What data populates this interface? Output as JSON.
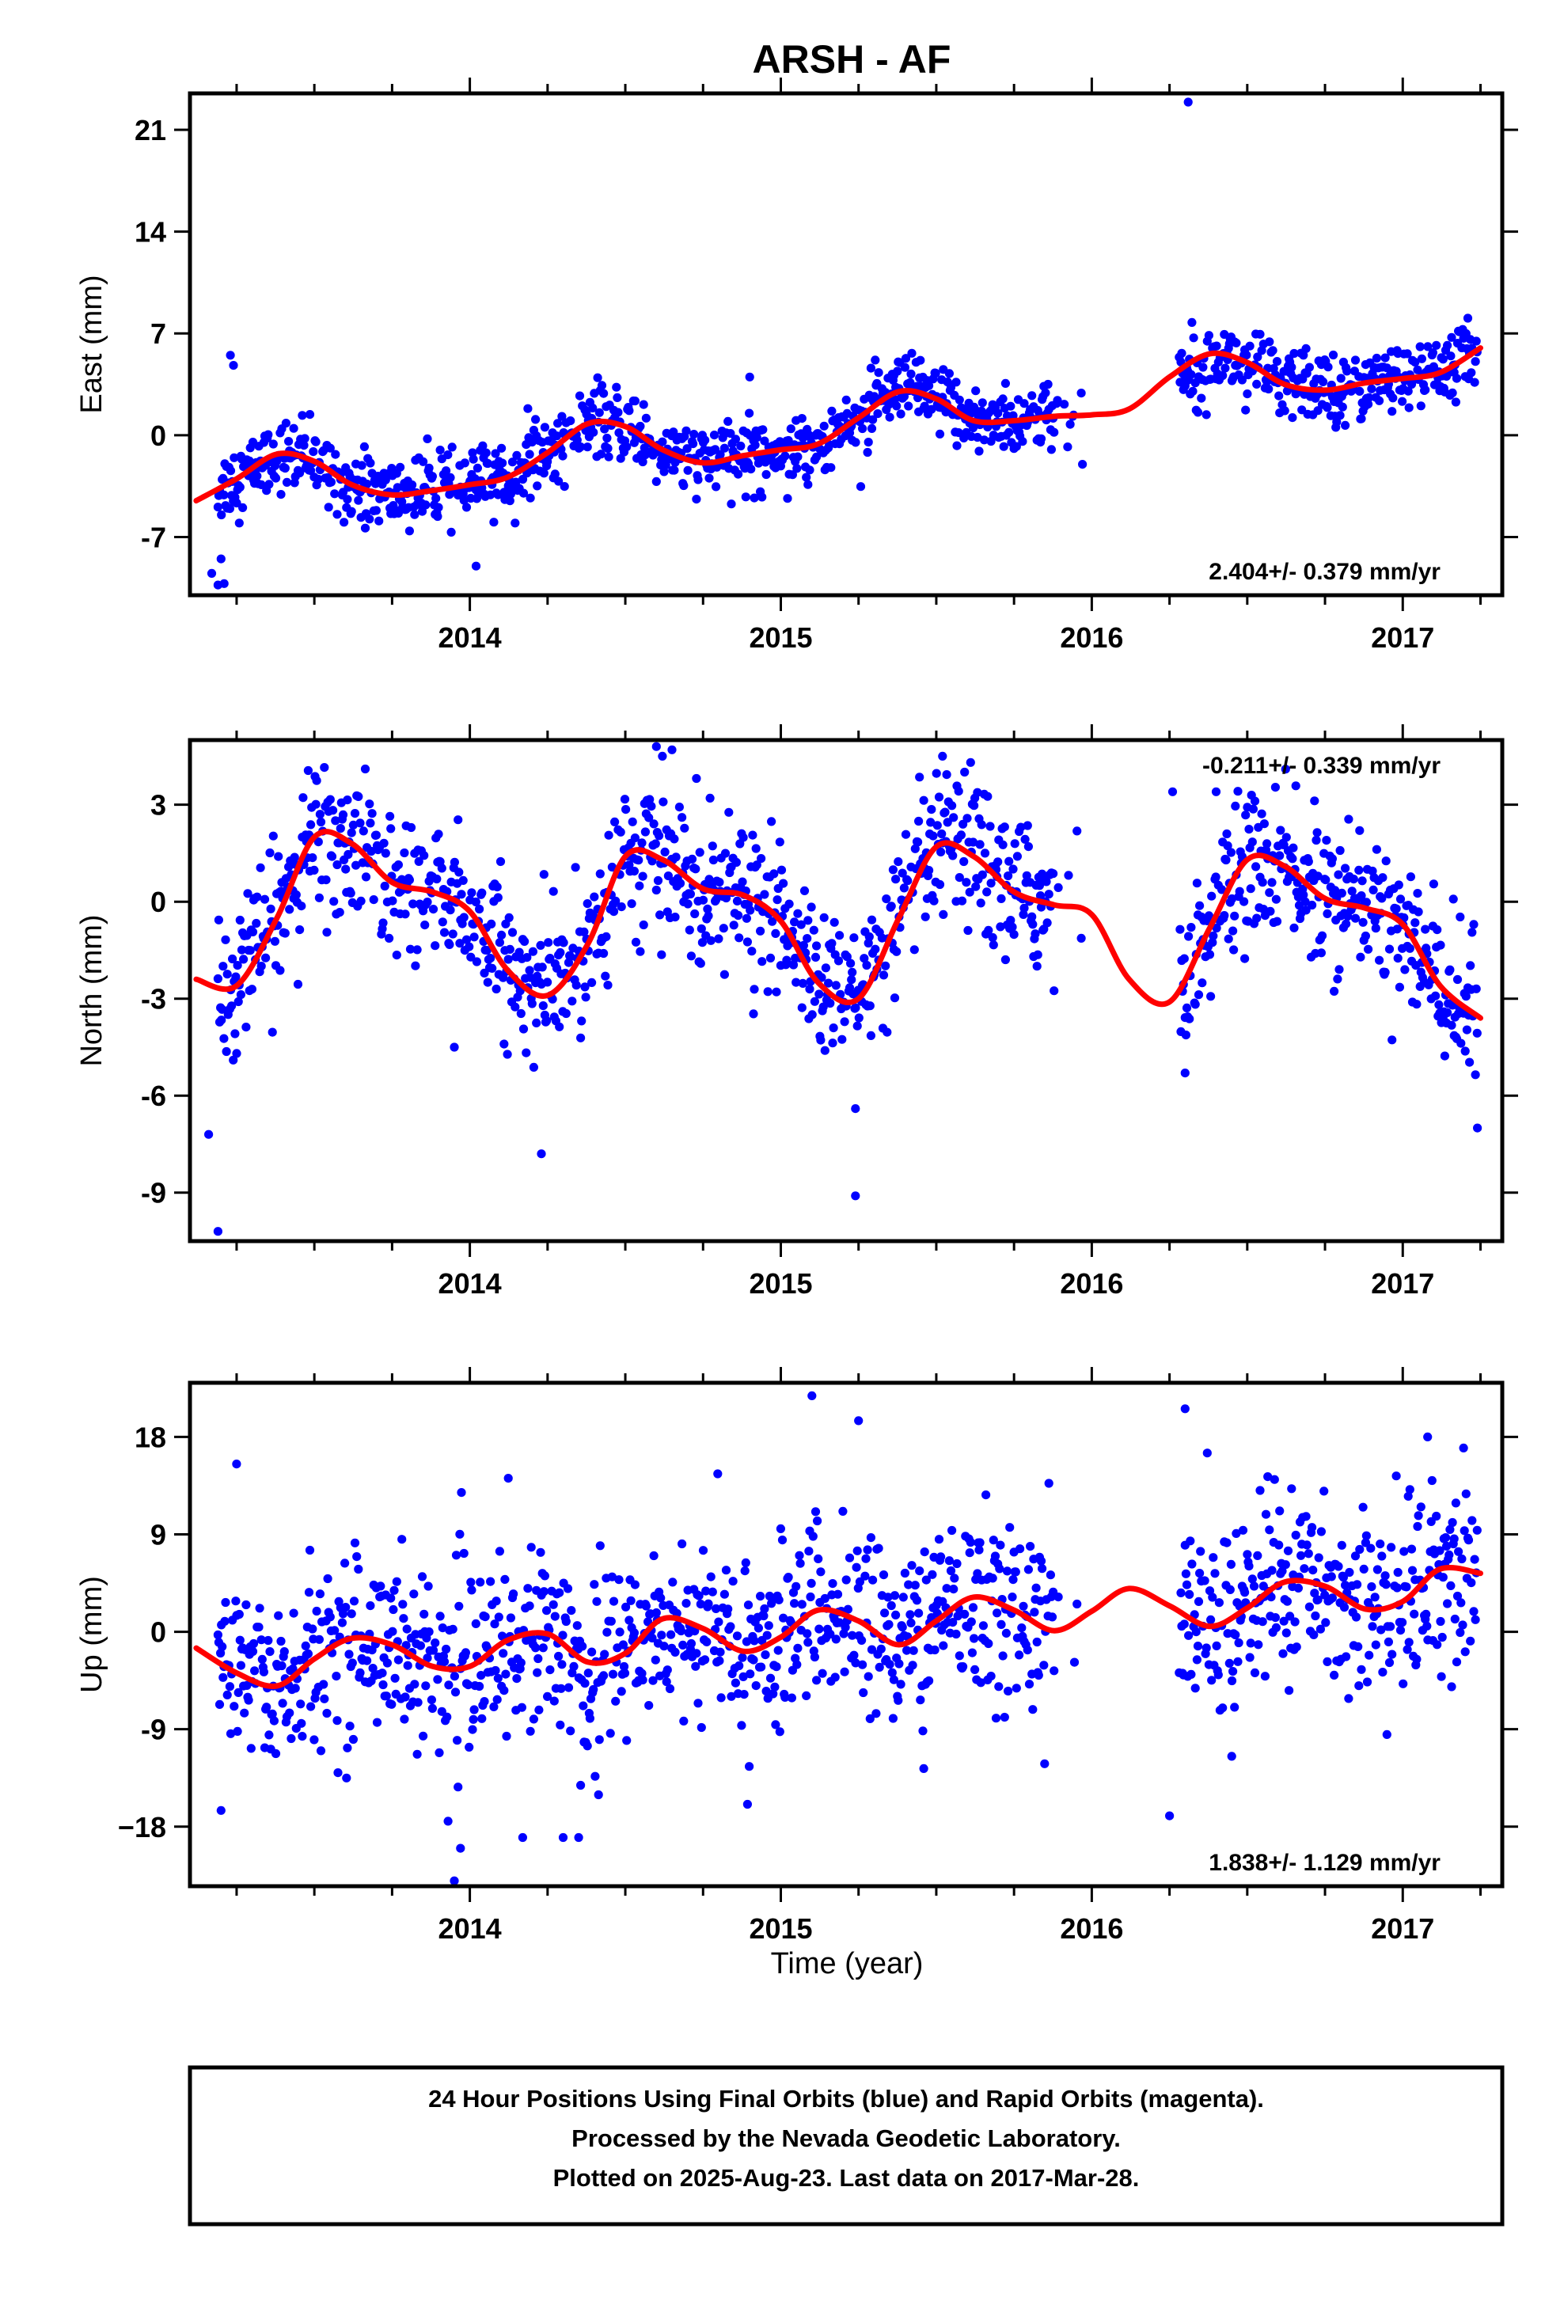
{
  "chart_data": {
    "type": "scatter",
    "title": "ARSH - AF",
    "xlabel": "Time (year)",
    "xlim": [
      2013.1,
      2017.32
    ],
    "x_ticks": [
      2014,
      2015,
      2016,
      2017
    ],
    "x_tick_labels": [
      "2014",
      "2015",
      "2016",
      "2017"
    ],
    "x_minor_tick_step": 0.25,
    "point_color": "#0000ff",
    "fit_color": "#ff0000",
    "data_span": [
      2013.19,
      2017.24
    ],
    "data_gap": [
      2015.97,
      2016.28
    ],
    "panels": [
      {
        "name": "east",
        "ylabel": "East (mm)",
        "ylim": [
          -11.0,
          23.5
        ],
        "yticks": [
          -7,
          0,
          7,
          14,
          21
        ],
        "ytick_labels": [
          "-7",
          "0",
          "7",
          "14",
          "21"
        ],
        "rate": "2.404+/- 0.379 mm/yr",
        "rate_position": "bottom-right",
        "noise_sd": 1.2,
        "outliers": [
          [
            2013.17,
            -9.5
          ],
          [
            2013.19,
            -10.3
          ],
          [
            2013.2,
            -8.5
          ],
          [
            2013.21,
            -10.2
          ],
          [
            2013.23,
            5.5
          ],
          [
            2013.24,
            4.8
          ],
          [
            2014.02,
            -9.0
          ],
          [
            2014.9,
            4.0
          ],
          [
            2016.31,
            22.9
          ],
          [
            2015.97,
            -2.0
          ]
        ],
        "fit": [
          [
            2013.12,
            -4.5
          ],
          [
            2013.25,
            -3.0
          ],
          [
            2013.38,
            -1.3
          ],
          [
            2013.5,
            -1.8
          ],
          [
            2013.62,
            -3.4
          ],
          [
            2013.75,
            -4.1
          ],
          [
            2013.88,
            -3.8
          ],
          [
            2014.0,
            -3.4
          ],
          [
            2014.12,
            -2.9
          ],
          [
            2014.25,
            -1.2
          ],
          [
            2014.38,
            0.8
          ],
          [
            2014.5,
            0.6
          ],
          [
            2014.62,
            -1.0
          ],
          [
            2014.75,
            -1.9
          ],
          [
            2014.88,
            -1.4
          ],
          [
            2015.0,
            -1.0
          ],
          [
            2015.12,
            -0.6
          ],
          [
            2015.25,
            1.2
          ],
          [
            2015.38,
            3.0
          ],
          [
            2015.5,
            2.5
          ],
          [
            2015.62,
            1.0
          ],
          [
            2015.75,
            1.0
          ],
          [
            2015.88,
            1.3
          ],
          [
            2016.0,
            1.4
          ],
          [
            2016.12,
            1.8
          ],
          [
            2016.25,
            4.0
          ],
          [
            2016.38,
            5.6
          ],
          [
            2016.5,
            5.0
          ],
          [
            2016.62,
            3.5
          ],
          [
            2016.75,
            3.1
          ],
          [
            2016.88,
            3.6
          ],
          [
            2017.0,
            3.9
          ],
          [
            2017.12,
            4.3
          ],
          [
            2017.25,
            6.0
          ]
        ]
      },
      {
        "name": "north",
        "ylabel": "North (mm)",
        "ylim": [
          -10.5,
          5.0
        ],
        "yticks": [
          -9,
          -6,
          -3,
          0,
          3
        ],
        "ytick_labels": [
          "-9",
          "-6",
          "-3",
          "0",
          "3"
        ],
        "rate": "-0.211+/- 0.339 mm/yr",
        "rate_position": "top-right",
        "noise_sd": 1.1,
        "outliers": [
          [
            2013.19,
            -10.2
          ],
          [
            2013.16,
            -7.2
          ],
          [
            2014.23,
            -7.8
          ],
          [
            2013.95,
            -4.5
          ],
          [
            2014.6,
            4.8
          ],
          [
            2014.65,
            4.7
          ],
          [
            2015.24,
            -9.1
          ],
          [
            2015.24,
            -6.4
          ],
          [
            2015.52,
            4.5
          ],
          [
            2016.26,
            3.4
          ],
          [
            2016.4,
            3.4
          ],
          [
            2016.3,
            -5.3
          ],
          [
            2017.24,
            -7.0
          ]
        ],
        "fit": [
          [
            2013.12,
            -2.4
          ],
          [
            2013.25,
            -2.6
          ],
          [
            2013.38,
            -0.5
          ],
          [
            2013.5,
            2.0
          ],
          [
            2013.62,
            1.8
          ],
          [
            2013.75,
            0.6
          ],
          [
            2013.88,
            0.3
          ],
          [
            2014.0,
            -0.3
          ],
          [
            2014.12,
            -2.1
          ],
          [
            2014.25,
            -2.9
          ],
          [
            2014.38,
            -1.3
          ],
          [
            2014.5,
            1.4
          ],
          [
            2014.62,
            1.3
          ],
          [
            2014.75,
            0.4
          ],
          [
            2014.88,
            0.2
          ],
          [
            2015.0,
            -0.6
          ],
          [
            2015.12,
            -2.5
          ],
          [
            2015.25,
            -3.0
          ],
          [
            2015.38,
            -0.5
          ],
          [
            2015.5,
            1.7
          ],
          [
            2015.62,
            1.4
          ],
          [
            2015.75,
            0.3
          ],
          [
            2015.88,
            -0.1
          ],
          [
            2016.0,
            -0.4
          ],
          [
            2016.12,
            -2.4
          ],
          [
            2016.25,
            -3.1
          ],
          [
            2016.38,
            -0.8
          ],
          [
            2016.5,
            1.3
          ],
          [
            2016.62,
            1.1
          ],
          [
            2016.75,
            0.1
          ],
          [
            2016.88,
            -0.2
          ],
          [
            2017.0,
            -0.7
          ],
          [
            2017.12,
            -2.6
          ],
          [
            2017.25,
            -3.6
          ]
        ]
      },
      {
        "name": "up",
        "ylabel": "Up (mm)",
        "ylim": [
          -23.5,
          23.0
        ],
        "yticks": [
          -18,
          -9,
          0,
          9,
          18
        ],
        "ytick_labels": [
          "−18",
          "-9",
          "0",
          "9",
          "18"
        ],
        "rate": "1.838+/- 1.129 mm/yr",
        "rate_position": "bottom-right",
        "noise_sd": 4.2,
        "outliers": [
          [
            2013.95,
            -23.0
          ],
          [
            2013.97,
            -20.0
          ],
          [
            2013.93,
            -17.5
          ],
          [
            2014.17,
            -19.0
          ],
          [
            2014.3,
            -19.0
          ],
          [
            2014.35,
            -19.0
          ],
          [
            2015.1,
            21.8
          ],
          [
            2015.25,
            19.5
          ],
          [
            2016.3,
            20.6
          ],
          [
            2016.25,
            -17.0
          ],
          [
            2016.45,
            -11.5
          ],
          [
            2017.08,
            18.0
          ],
          [
            2013.2,
            -16.5
          ],
          [
            2013.25,
            15.5
          ]
        ],
        "fit": [
          [
            2013.12,
            -1.5
          ],
          [
            2013.25,
            -3.8
          ],
          [
            2013.38,
            -5.0
          ],
          [
            2013.5,
            -2.5
          ],
          [
            2013.62,
            -0.6
          ],
          [
            2013.75,
            -1.2
          ],
          [
            2013.88,
            -3.2
          ],
          [
            2014.0,
            -3.2
          ],
          [
            2014.12,
            -0.8
          ],
          [
            2014.25,
            -0.2
          ],
          [
            2014.38,
            -2.8
          ],
          [
            2014.5,
            -2.0
          ],
          [
            2014.62,
            1.2
          ],
          [
            2014.75,
            0.3
          ],
          [
            2014.88,
            -1.8
          ],
          [
            2015.0,
            -0.5
          ],
          [
            2015.12,
            2.0
          ],
          [
            2015.25,
            1.0
          ],
          [
            2015.38,
            -1.2
          ],
          [
            2015.5,
            1.0
          ],
          [
            2015.62,
            3.2
          ],
          [
            2015.75,
            2.0
          ],
          [
            2015.88,
            0.1
          ],
          [
            2016.0,
            1.9
          ],
          [
            2016.12,
            4.0
          ],
          [
            2016.25,
            2.4
          ],
          [
            2016.38,
            0.5
          ],
          [
            2016.5,
            2.2
          ],
          [
            2016.62,
            4.6
          ],
          [
            2016.75,
            4.2
          ],
          [
            2016.88,
            2.1
          ],
          [
            2017.0,
            2.8
          ],
          [
            2017.12,
            5.8
          ],
          [
            2017.25,
            5.4
          ]
        ]
      }
    ]
  },
  "footer": {
    "line1": "24 Hour Positions Using Final Orbits (blue) and Rapid Orbits (magenta).",
    "line2": "Processed by the Nevada Geodetic Laboratory.",
    "line3": "Plotted on 2025-Aug-23. Last data on 2017-Mar-28."
  }
}
